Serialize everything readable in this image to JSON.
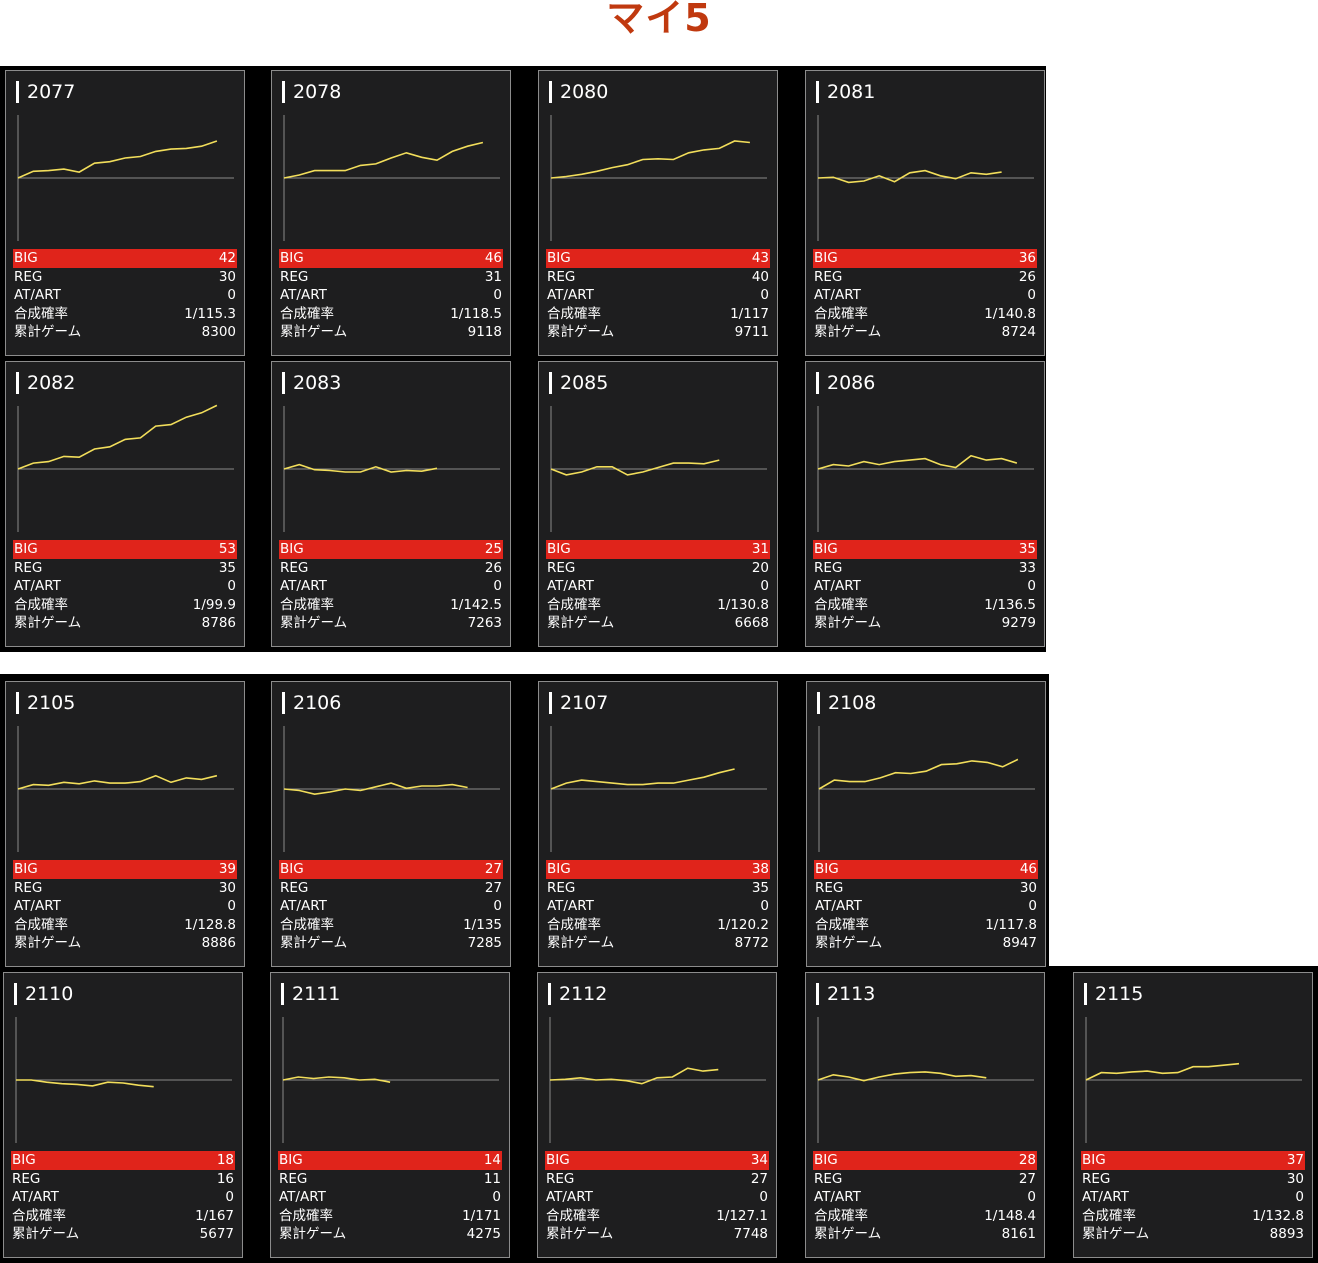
{
  "title": "マイ5",
  "labels": {
    "big": "BIG",
    "reg": "REG",
    "at": "AT/ART",
    "prob": "合成確率",
    "games": "累計ゲーム"
  },
  "colors": {
    "line": "#f2de5b",
    "big_bar": "#e0241b",
    "title": "#c0390f"
  },
  "machines": [
    {
      "number": "2077",
      "big": "42",
      "reg": "30",
      "at": "0",
      "prob": "1/115.3",
      "games": "8300",
      "graph": [
        0,
        9,
        10,
        12,
        8,
        20,
        22,
        27,
        29,
        36,
        39,
        40,
        43,
        50
      ]
    },
    {
      "number": "2078",
      "big": "46",
      "reg": "31",
      "at": "0",
      "prob": "1/118.5",
      "games": "9118",
      "graph": [
        0,
        4,
        10,
        10,
        10,
        17,
        19,
        27,
        34,
        28,
        24,
        36,
        43,
        48
      ]
    },
    {
      "number": "2080",
      "big": "43",
      "reg": "40",
      "at": "0",
      "prob": "1/117",
      "games": "9711",
      "graph": [
        0,
        2,
        5,
        9,
        14,
        18,
        25,
        26,
        25,
        34,
        38,
        40,
        50,
        48
      ]
    },
    {
      "number": "2081",
      "big": "36",
      "reg": "26",
      "at": "0",
      "prob": "1/140.8",
      "games": "8724",
      "graph": [
        0,
        1,
        -6,
        -4,
        3,
        -5,
        7,
        10,
        3,
        -1,
        7,
        5,
        8
      ]
    },
    {
      "number": "2082",
      "big": "53",
      "reg": "35",
      "at": "0",
      "prob": "1/99.9",
      "games": "8786",
      "graph": [
        0,
        8,
        10,
        17,
        16,
        27,
        30,
        40,
        42,
        58,
        60,
        70,
        76,
        86
      ]
    },
    {
      "number": "2083",
      "big": "25",
      "reg": "26",
      "at": "0",
      "prob": "1/142.5",
      "games": "7263",
      "graph": [
        0,
        6,
        -1,
        -2,
        -4,
        -4,
        3,
        -4,
        -2,
        -3,
        1
      ]
    },
    {
      "number": "2085",
      "big": "31",
      "reg": "20",
      "at": "0",
      "prob": "1/130.8",
      "games": "6668",
      "graph": [
        0,
        -8,
        -4,
        3,
        3,
        -8,
        -4,
        2,
        8,
        8,
        7,
        12
      ]
    },
    {
      "number": "2086",
      "big": "35",
      "reg": "33",
      "at": "0",
      "prob": "1/136.5",
      "games": "9279",
      "graph": [
        0,
        6,
        4,
        10,
        6,
        10,
        12,
        14,
        6,
        2,
        18,
        12,
        14,
        8
      ]
    },
    {
      "number": "2105",
      "big": "39",
      "reg": "30",
      "at": "0",
      "prob": "1/128.8",
      "games": "8886",
      "graph": [
        0,
        6,
        5,
        9,
        7,
        11,
        8,
        8,
        10,
        18,
        9,
        15,
        13,
        18
      ]
    },
    {
      "number": "2106",
      "big": "27",
      "reg": "27",
      "at": "0",
      "prob": "1/135",
      "games": "7285",
      "graph": [
        0,
        -2,
        -7,
        -4,
        0,
        -2,
        3,
        8,
        1,
        4,
        4,
        6,
        2
      ]
    },
    {
      "number": "2107",
      "big": "38",
      "reg": "35",
      "at": "0",
      "prob": "1/120.2",
      "games": "8772",
      "graph": [
        0,
        8,
        12,
        10,
        8,
        6,
        6,
        8,
        8,
        12,
        16,
        22,
        27
      ]
    },
    {
      "number": "2108",
      "big": "46",
      "reg": "30",
      "at": "0",
      "prob": "1/117.8",
      "games": "8947",
      "graph": [
        0,
        12,
        10,
        10,
        15,
        22,
        21,
        24,
        33,
        34,
        38,
        36,
        30,
        40
      ]
    },
    {
      "number": "2110",
      "big": "18",
      "reg": "16",
      "at": "0",
      "prob": "1/167",
      "games": "5677",
      "graph": [
        0,
        0,
        -3,
        -5,
        -6,
        -8,
        -3,
        -4,
        -7,
        -9
      ]
    },
    {
      "number": "2111",
      "big": "14",
      "reg": "11",
      "at": "0",
      "prob": "1/171",
      "games": "4275",
      "graph": [
        0,
        4,
        2,
        4,
        3,
        0,
        1,
        -3
      ]
    },
    {
      "number": "2112",
      "big": "34",
      "reg": "27",
      "at": "0",
      "prob": "1/127.1",
      "games": "7748",
      "graph": [
        0,
        1,
        3,
        0,
        1,
        -1,
        -5,
        3,
        4,
        16,
        12,
        14
      ]
    },
    {
      "number": "2113",
      "big": "28",
      "reg": "27",
      "at": "0",
      "prob": "1/148.4",
      "games": "8161",
      "graph": [
        0,
        7,
        4,
        -1,
        4,
        8,
        10,
        11,
        9,
        5,
        6,
        3
      ]
    },
    {
      "number": "2115",
      "big": "37",
      "reg": "30",
      "at": "0",
      "prob": "1/132.8",
      "games": "8893",
      "graph": [
        0,
        10,
        9,
        11,
        12,
        9,
        10,
        18,
        18,
        20,
        22
      ]
    }
  ]
}
